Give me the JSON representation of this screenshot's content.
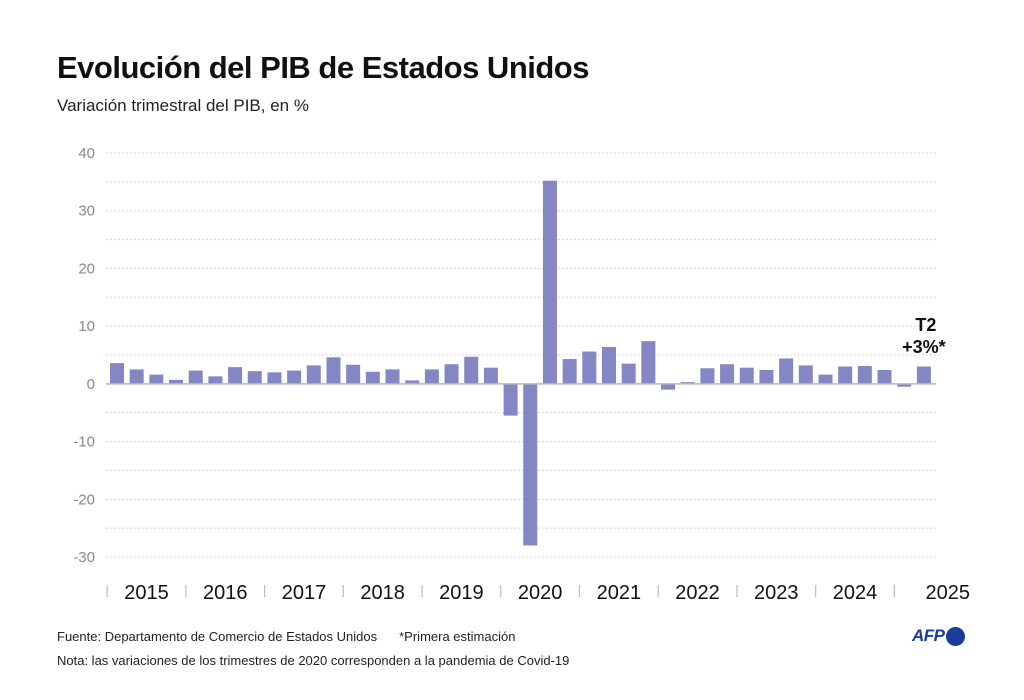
{
  "header": {
    "title": "Evolución del PIB de Estados Unidos",
    "subtitle": "Variación trimestral del PIB, en %"
  },
  "chart_data": {
    "type": "bar",
    "title": "Evolución del PIB de Estados Unidos",
    "subtitle": "Variación trimestral del PIB, en %",
    "xlabel": "",
    "ylabel": "",
    "ylim": [
      -30,
      40
    ],
    "yticks": [
      40,
      30,
      20,
      10,
      0,
      -10,
      -20,
      -30
    ],
    "grid": true,
    "bar_color": "#8388c4",
    "year_labels": [
      "2015",
      "2016",
      "2017",
      "2018",
      "2019",
      "2020",
      "2021",
      "2022",
      "2023",
      "2024",
      "2025"
    ],
    "categories": [
      "2015-T1",
      "2015-T2",
      "2015-T3",
      "2015-T4",
      "2016-T1",
      "2016-T2",
      "2016-T3",
      "2016-T4",
      "2017-T1",
      "2017-T2",
      "2017-T3",
      "2017-T4",
      "2018-T1",
      "2018-T2",
      "2018-T3",
      "2018-T4",
      "2019-T1",
      "2019-T2",
      "2019-T3",
      "2019-T4",
      "2020-T1",
      "2020-T2",
      "2020-T3",
      "2020-T4",
      "2021-T1",
      "2021-T2",
      "2021-T3",
      "2021-T4",
      "2022-T1",
      "2022-T2",
      "2022-T3",
      "2022-T4",
      "2023-T1",
      "2023-T2",
      "2023-T3",
      "2023-T4",
      "2024-T1",
      "2024-T2",
      "2024-T3",
      "2024-T4",
      "2025-T1",
      "2025-T2"
    ],
    "values": [
      3.6,
      2.5,
      1.6,
      0.7,
      2.3,
      1.3,
      2.9,
      2.2,
      2.0,
      2.3,
      3.2,
      4.6,
      3.3,
      2.1,
      2.5,
      0.6,
      2.5,
      3.4,
      4.7,
      2.8,
      -5.5,
      -28.0,
      35.2,
      4.3,
      5.6,
      6.4,
      3.5,
      7.4,
      -1.0,
      0.3,
      2.7,
      3.4,
      2.8,
      2.4,
      4.4,
      3.2,
      1.6,
      3.0,
      3.1,
      2.4,
      -0.5,
      3.0
    ],
    "annotation": {
      "target": "2025-T2",
      "line1": "T2",
      "line2": "+3%*"
    }
  },
  "footer": {
    "source": "Fuente: Departamento de Comercio de Estados Unidos",
    "asterisk_note": "*Primera estimación",
    "note": "Nota: las variaciones de los trimestres de 2020 corresponden a la pandemia de Covid-19"
  },
  "logo": {
    "text": "AFP",
    "color": "#1a3c9c"
  }
}
